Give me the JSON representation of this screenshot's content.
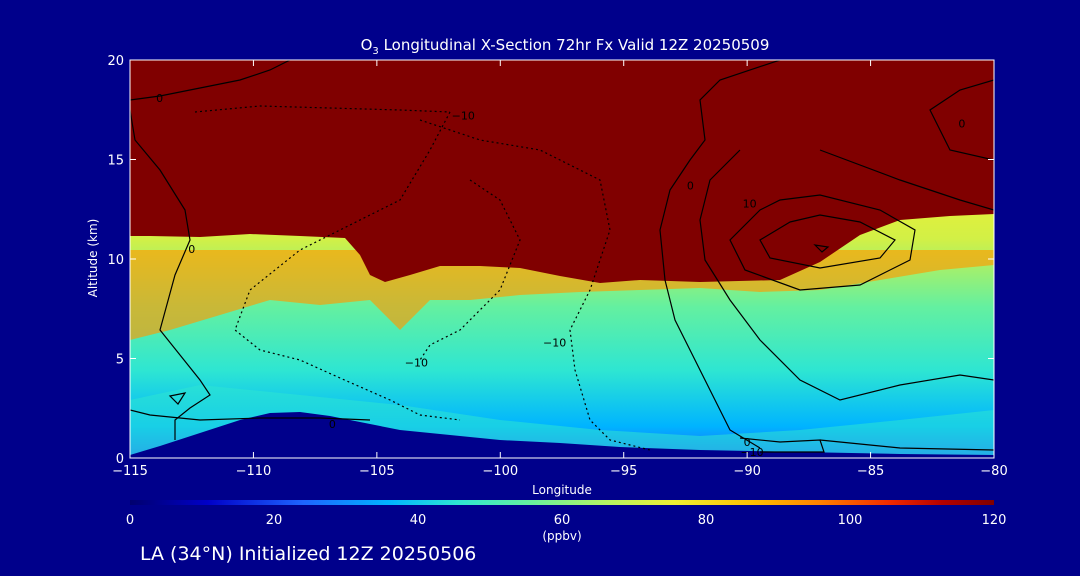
{
  "chart_data": {
    "type": "heatmap",
    "title_main": "O",
    "title_sub": "3",
    "title_rest": " Longitudinal X-Section 72hr  Fx Valid 12Z 20250509",
    "xlabel": "Longitude",
    "ylabel": "Altitude (km)",
    "xlim": [
      -115,
      -80
    ],
    "ylim": [
      0,
      20
    ],
    "x_ticks": [
      "−115",
      "−110",
      "−105",
      "−100",
      "−95",
      "−90",
      "−85",
      "−80"
    ],
    "y_ticks": [
      "0",
      "5",
      "10",
      "15",
      "20"
    ],
    "colorbar": {
      "range": [
        0,
        120
      ],
      "unit": "(ppbv)",
      "ticks": [
        "0",
        "20",
        "40",
        "60",
        "80",
        "100",
        "120"
      ],
      "colors": [
        "#00006e",
        "#0000c8",
        "#1e64ff",
        "#00b4ff",
        "#2ee6d2",
        "#64f0a0",
        "#b4f564",
        "#f0f032",
        "#ffc000",
        "#ff7f00",
        "#f02800",
        "#b40000",
        "#800000"
      ]
    },
    "ozone_profile": {
      "x": [
        -115,
        -112,
        -109,
        -106,
        -104,
        -102,
        -99,
        -96,
        -93,
        -90,
        -87,
        -84,
        -80
      ],
      "tropopause_km": [
        11,
        11.2,
        11,
        10.6,
        9,
        9.6,
        8.5,
        8.8,
        8.9,
        8.7,
        9.2,
        11.2,
        11.5
      ],
      "ground_km": [
        0.3,
        1.0,
        2.1,
        1.4,
        0.9,
        0.5,
        0.3,
        0.2,
        0.1,
        0.1,
        0.1,
        0.1,
        0.1
      ]
    },
    "contour_labels": [
      {
        "x": -113.8,
        "y": 18.1,
        "text": "0"
      },
      {
        "x": -112.5,
        "y": 10.5,
        "text": "0"
      },
      {
        "x": -106.8,
        "y": 1.7,
        "text": "0"
      },
      {
        "x": -101.5,
        "y": 17.2,
        "text": "−10"
      },
      {
        "x": -103.4,
        "y": 4.8,
        "text": "−10"
      },
      {
        "x": -97.8,
        "y": 5.8,
        "text": "−10"
      },
      {
        "x": -92.3,
        "y": 13.7,
        "text": "0"
      },
      {
        "x": -90.0,
        "y": 0.8,
        "text": "0"
      },
      {
        "x": -89.8,
        "y": 0.3,
        "text": "−10"
      },
      {
        "x": -89.9,
        "y": 12.8,
        "text": "10"
      },
      {
        "x": -81.3,
        "y": 16.8,
        "text": "0"
      }
    ],
    "footer": "LA (34°N) Initialized 12Z 20250506"
  }
}
